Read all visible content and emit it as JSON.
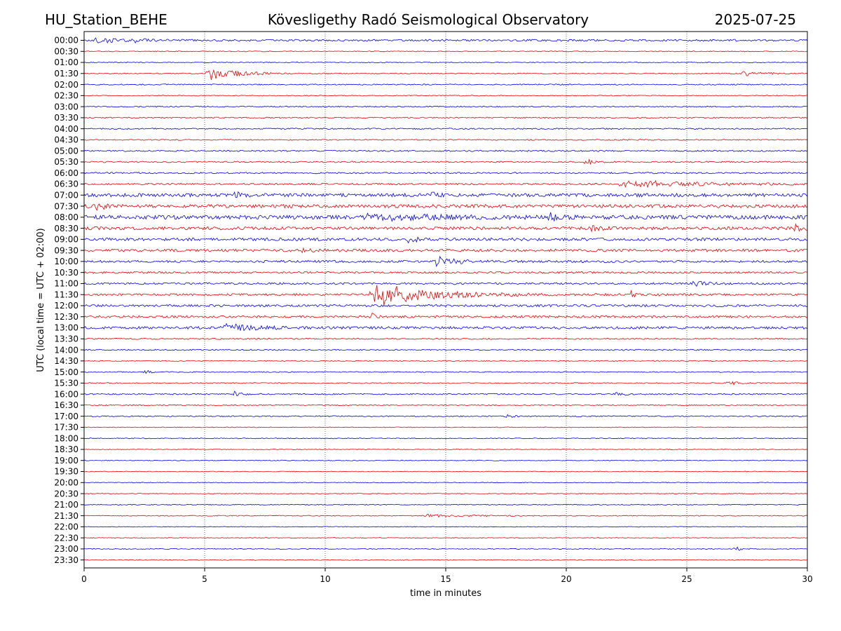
{
  "header": {
    "station": "HU_Station_BEHE",
    "observatory": "Kövesligethy Radó Seismological Observatory",
    "date": "2025-07-25"
  },
  "chart_data": {
    "type": "line",
    "title": "Kövesligethy Radó Seismological Observatory",
    "xlabel": "time in minutes",
    "ylabel": "UTC (local time = UTC + 02:00)",
    "xlim": [
      0,
      30
    ],
    "x_ticks": [
      "0",
      "5",
      "10",
      "15",
      "20",
      "25",
      "30"
    ],
    "x_grid": "dotted vertical lines at each x tick",
    "row_colors": [
      "#0000ee",
      "#ee0000"
    ],
    "rows": [
      {
        "label": "00:00",
        "noise": 1.4,
        "events": [
          {
            "t": 0.4,
            "amp": 4,
            "dur": 2.0
          },
          {
            "t": 1.9,
            "amp": 3,
            "dur": 1.0
          }
        ]
      },
      {
        "label": "00:30",
        "noise": 0.6,
        "events": []
      },
      {
        "label": "01:00",
        "noise": 0.6,
        "events": []
      },
      {
        "label": "01:30",
        "noise": 0.7,
        "events": [
          {
            "t": 5.1,
            "amp": 11,
            "dur": 2.3
          },
          {
            "t": 27.2,
            "amp": 4,
            "dur": 1.8
          }
        ]
      },
      {
        "label": "02:00",
        "noise": 0.8,
        "events": []
      },
      {
        "label": "02:30",
        "noise": 0.6,
        "events": []
      },
      {
        "label": "03:00",
        "noise": 0.8,
        "events": []
      },
      {
        "label": "03:30",
        "noise": 0.8,
        "events": []
      },
      {
        "label": "04:00",
        "noise": 0.9,
        "events": []
      },
      {
        "label": "04:30",
        "noise": 0.8,
        "events": []
      },
      {
        "label": "05:00",
        "noise": 1.0,
        "events": []
      },
      {
        "label": "05:30",
        "noise": 1.0,
        "events": [
          {
            "t": 20.8,
            "amp": 8,
            "dur": 0.5
          }
        ]
      },
      {
        "label": "06:00",
        "noise": 1.1,
        "events": []
      },
      {
        "label": "06:30",
        "noise": 1.2,
        "events": [
          {
            "t": 22.0,
            "amp": 4,
            "dur": 8.0
          },
          {
            "t": 23.4,
            "amp": 6,
            "dur": 0.5
          }
        ]
      },
      {
        "label": "07:00",
        "noise": 2.4,
        "events": [
          {
            "t": 6.2,
            "amp": 5,
            "dur": 0.6
          },
          {
            "t": 14.3,
            "amp": 5,
            "dur": 0.5
          }
        ]
      },
      {
        "label": "07:30",
        "noise": 2.4,
        "events": [
          {
            "t": 0.5,
            "amp": 7,
            "dur": 0.6
          }
        ]
      },
      {
        "label": "08:00",
        "noise": 2.8,
        "events": [
          {
            "t": 11.5,
            "amp": 5,
            "dur": 6.0
          },
          {
            "t": 19.3,
            "amp": 7,
            "dur": 0.5
          }
        ]
      },
      {
        "label": "08:30",
        "noise": 2.2,
        "events": [
          {
            "t": 21.0,
            "amp": 5,
            "dur": 0.6
          },
          {
            "t": 29.4,
            "amp": 6,
            "dur": 0.6
          }
        ]
      },
      {
        "label": "09:00",
        "noise": 2.1,
        "events": [
          {
            "t": 13.4,
            "amp": 7,
            "dur": 0.6
          }
        ]
      },
      {
        "label": "09:30",
        "noise": 1.9,
        "events": [
          {
            "t": 9.0,
            "amp": 4,
            "dur": 0.6
          }
        ]
      },
      {
        "label": "10:00",
        "noise": 1.6,
        "events": [
          {
            "t": 14.5,
            "amp": 9,
            "dur": 1.6
          }
        ]
      },
      {
        "label": "10:30",
        "noise": 1.3,
        "events": []
      },
      {
        "label": "11:00",
        "noise": 1.4,
        "events": [
          {
            "t": 25.2,
            "amp": 4,
            "dur": 1.2
          }
        ]
      },
      {
        "label": "11:30",
        "noise": 1.5,
        "events": [
          {
            "t": 11.9,
            "amp": 18,
            "dur": 4.5
          },
          {
            "t": 22.6,
            "amp": 5,
            "dur": 1.0
          }
        ]
      },
      {
        "label": "12:00",
        "noise": 1.6,
        "events": []
      },
      {
        "label": "12:30",
        "noise": 1.6,
        "events": [
          {
            "t": 11.9,
            "amp": 5,
            "dur": 0.4
          }
        ]
      },
      {
        "label": "13:00",
        "noise": 1.8,
        "events": [
          {
            "t": 5.7,
            "amp": 6,
            "dur": 2.5
          }
        ]
      },
      {
        "label": "13:30",
        "noise": 0.9,
        "events": []
      },
      {
        "label": "14:00",
        "noise": 0.9,
        "events": []
      },
      {
        "label": "14:30",
        "noise": 0.7,
        "events": []
      },
      {
        "label": "15:00",
        "noise": 0.7,
        "events": [
          {
            "t": 2.5,
            "amp": 4,
            "dur": 0.4
          }
        ]
      },
      {
        "label": "15:30",
        "noise": 0.7,
        "events": [
          {
            "t": 26.7,
            "amp": 4,
            "dur": 0.7
          }
        ]
      },
      {
        "label": "16:00",
        "noise": 0.9,
        "events": [
          {
            "t": 6.2,
            "amp": 7,
            "dur": 0.5
          },
          {
            "t": 22.0,
            "amp": 3,
            "dur": 1.0
          }
        ]
      },
      {
        "label": "16:30",
        "noise": 0.7,
        "events": []
      },
      {
        "label": "17:00",
        "noise": 0.8,
        "events": [
          {
            "t": 17.5,
            "amp": 3,
            "dur": 0.5
          }
        ]
      },
      {
        "label": "17:30",
        "noise": 0.5,
        "events": []
      },
      {
        "label": "18:00",
        "noise": 0.6,
        "events": []
      },
      {
        "label": "18:30",
        "noise": 0.5,
        "events": []
      },
      {
        "label": "19:00",
        "noise": 0.6,
        "events": []
      },
      {
        "label": "19:30",
        "noise": 0.5,
        "events": []
      },
      {
        "label": "20:00",
        "noise": 0.5,
        "events": []
      },
      {
        "label": "20:30",
        "noise": 0.5,
        "events": []
      },
      {
        "label": "21:00",
        "noise": 0.6,
        "events": []
      },
      {
        "label": "21:30",
        "noise": 0.6,
        "events": [
          {
            "t": 14.0,
            "amp": 2,
            "dur": 4.0
          }
        ]
      },
      {
        "label": "22:00",
        "noise": 0.5,
        "events": []
      },
      {
        "label": "22:30",
        "noise": 0.5,
        "events": []
      },
      {
        "label": "23:00",
        "noise": 0.6,
        "events": [
          {
            "t": 27.0,
            "amp": 4,
            "dur": 0.5
          }
        ]
      },
      {
        "label": "23:30",
        "noise": 0.6,
        "events": []
      }
    ]
  }
}
